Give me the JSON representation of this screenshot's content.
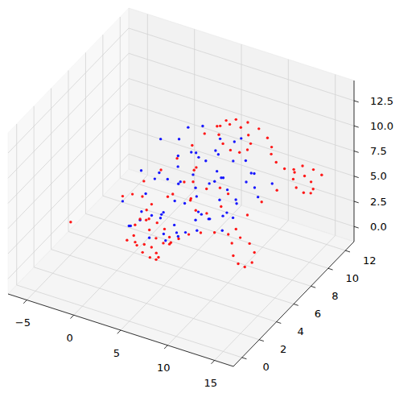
{
  "chart_data": {
    "type": "scatter",
    "grid": true,
    "xlim": [
      -7,
      17
    ],
    "ylim": [
      -1,
      13
    ],
    "zlim": [
      -1.5,
      14.5
    ],
    "xticks": [
      {
        "value": -5,
        "label": "−5"
      },
      0,
      5,
      10,
      15
    ],
    "yticks": [
      0,
      2,
      4,
      6,
      8,
      10,
      12
    ],
    "zticks": [
      {
        "value": 0,
        "label": "0.0"
      },
      {
        "value": 2.5,
        "label": "2.5"
      },
      {
        "value": 5,
        "label": "5.0"
      },
      {
        "value": 7.5,
        "label": "7.5"
      },
      {
        "value": 10,
        "label": "10.0"
      },
      {
        "value": 12.5,
        "label": "12.5"
      }
    ],
    "series": [
      {
        "color": "blue",
        "x": [
          1.2,
          0.8,
          1.4,
          1.1,
          0.9,
          1.3,
          2.2,
          1.8,
          2.4,
          2.1,
          1.9,
          3.3,
          2.8,
          3.1,
          3.4,
          2.7,
          3.2,
          2.9,
          4.1,
          3.8,
          4.3,
          4.2,
          3.7,
          4.4,
          3.9,
          5.2,
          4.8,
          5.3,
          4.9,
          5.1,
          4.7,
          5.4,
          5.0,
          6.2,
          5.8,
          6.3,
          6.1,
          5.9,
          6.4,
          5.7,
          6.0,
          7.1,
          6.8,
          7.3,
          7.2,
          6.9,
          7.4,
          6.7,
          7.0,
          8.2,
          7.8,
          8.3,
          8.1,
          7.9,
          8.4,
          7.7,
          9.1,
          8.8,
          9.3,
          9.2,
          8.9,
          9.4,
          8.7,
          10.1,
          9.8,
          10.2,
          9.9,
          10.3,
          2.3,
          4.1
        ],
        "y": [
          4.1,
          3.8,
          5.3,
          7.2,
          8.1,
          9.8,
          3.2,
          4.9,
          6.3,
          8.8,
          10.2,
          3.1,
          4.3,
          5.8,
          7.4,
          8.2,
          9.7,
          10.8,
          3.3,
          3.9,
          5.2,
          6.8,
          9.1,
          8.7,
          11.2,
          3.4,
          4.2,
          6.1,
          7.3,
          7.9,
          9.2,
          10.1,
          10.9,
          2.9,
          4.4,
          5.1,
          6.2,
          8.3,
          8.8,
          9.9,
          11.1,
          3.2,
          3.7,
          5.3,
          6.8,
          8.1,
          8.7,
          10.2,
          10.8,
          4.2,
          4.8,
          6.3,
          7.1,
          9.2,
          9.8,
          11.2,
          3.9,
          5.2,
          6.1,
          6.8,
          8.2,
          9.7,
          10.9,
          5.3,
          6.8,
          7.9,
          9.2,
          10.8,
          6.9,
          6.2
        ],
        "z": [
          3.2,
          5.8,
          7.7,
          5.1,
          8.2,
          6.8,
          4.3,
          4.1,
          6.9,
          5.2,
          7.8,
          5.3,
          6.7,
          3.4,
          7.9,
          4.2,
          6.1,
          7.7,
          3.6,
          5.2,
          7.8,
          6.1,
          3.3,
          6.9,
          5.2,
          5.8,
          3.4,
          4.9,
          8.8,
          2.4,
          6.2,
          7.8,
          3.1,
          4.3,
          6.8,
          3.2,
          7.9,
          5.1,
          7.7,
          4.2,
          6.8,
          5.1,
          4.2,
          6.9,
          3.3,
          6.8,
          2.3,
          5.9,
          7.7,
          5.8,
          4.1,
          7.8,
          5.2,
          3.3,
          6.8,
          4.1,
          6.9,
          5.2,
          3.4,
          6.8,
          4.1,
          5.9,
          2.3,
          5.8,
          4.2,
          6.9,
          5.1,
          4.2,
          2.4,
          2.3
        ]
      },
      {
        "color": "red",
        "x": [
          2.0,
          2.5,
          3.1,
          3.6,
          4.2,
          4.8,
          5.1,
          4.9,
          4.3,
          3.6,
          2.9,
          2.4,
          2.2,
          2.5,
          3.0,
          3.7,
          4.5,
          5.2,
          5.6,
          5.5,
          5.0,
          4.2,
          3.4,
          2.8,
          2.6,
          1.8,
          1.2,
          0.8,
          1.5,
          2.4,
          3.2,
          3.8,
          4.2,
          4.8,
          5.6,
          6.5,
          7.4,
          8.1,
          8.4,
          8.2,
          7.6,
          6.8,
          6.0,
          5.5,
          5.4,
          5.8,
          6.6,
          7.6,
          8.7,
          9.6,
          10.2,
          11.0,
          11.8,
          12.5,
          13.2,
          13.8,
          14.3,
          14.5,
          14.2,
          13.6,
          13.0,
          12.6,
          12.8,
          13.5,
          14.2,
          12.0,
          11.2,
          10.6,
          10.3,
          10.6,
          11.3,
          12.1,
          12.8,
          13.2,
          13.0,
          12.3,
          11.4,
          10.4,
          9.3,
          8.2,
          7.2,
          6.4,
          6.0,
          6.8,
          7.5,
          8.0,
          7.8,
          7.0,
          6.2,
          5.5,
          5.0,
          4.6,
          4.0,
          3.5,
          3.2,
          3.4,
          -4.0
        ],
        "y": [
          3.0,
          3.4,
          3.8,
          4.1,
          4.0,
          3.6,
          3.0,
          2.5,
          2.3,
          2.4,
          2.8,
          3.5,
          4.3,
          5.0,
          5.4,
          5.5,
          5.2,
          4.6,
          4.0,
          3.4,
          3.1,
          3.2,
          3.7,
          4.4,
          5.2,
          5.0,
          4.5,
          3.8,
          5.5,
          6.5,
          7.5,
          8.6,
          9.6,
          10.4,
          11.0,
          11.3,
          11.2,
          10.7,
          10.0,
          9.3,
          8.9,
          8.9,
          9.3,
          10.0,
          10.8,
          11.5,
          12.0,
          12.2,
          12.0,
          11.5,
          10.8,
          10.5,
          10.6,
          11.0,
          11.4,
          11.5,
          11.2,
          10.7,
          10.2,
          10.0,
          10.3,
          10.8,
          11.6,
          12.1,
          12.3,
          9.5,
          8.6,
          7.6,
          6.6,
          5.8,
          5.2,
          4.9,
          4.9,
          5.3,
          5.8,
          6.0,
          5.9,
          5.6,
          5.2,
          4.8,
          4.5,
          4.2,
          6.0,
          7.0,
          7.8,
          8.2,
          7.6,
          6.8,
          6.4,
          6.6,
          7.4,
          8.2,
          8.6,
          8.0,
          7.0,
          6.2,
          3.0
        ],
        "z": [
          3.0,
          2.6,
          2.2,
          1.8,
          1.5,
          1.6,
          2.0,
          2.6,
          3.1,
          3.5,
          3.9,
          4.2,
          4.0,
          3.5,
          2.9,
          2.4,
          2.1,
          2.3,
          2.8,
          3.4,
          4.0,
          4.5,
          4.8,
          5.0,
          4.8,
          5.5,
          6.0,
          6.3,
          6.5,
          7.0,
          7.5,
          8.0,
          8.4,
          8.6,
          8.5,
          8.2,
          7.8,
          7.6,
          7.7,
          8.0,
          8.4,
          8.8,
          9.1,
          9.2,
          9.0,
          8.6,
          8.1,
          7.6,
          7.2,
          7.0,
          7.1,
          6.8,
          6.3,
          5.8,
          5.3,
          4.8,
          4.5,
          4.6,
          5.0,
          5.5,
          5.9,
          6.3,
          6.0,
          5.4,
          4.9,
          5.2,
          4.6,
          4.0,
          3.4,
          2.8,
          2.3,
          2.0,
          1.9,
          2.1,
          2.6,
          3.1,
          3.5,
          3.8,
          4.0,
          4.0,
          3.8,
          3.4,
          5.5,
          6.0,
          5.6,
          4.8,
          4.0,
          3.8,
          4.2,
          5.0,
          5.8,
          6.4,
          5.6,
          4.8,
          4.4,
          4.9,
          3.0
        ]
      }
    ]
  }
}
